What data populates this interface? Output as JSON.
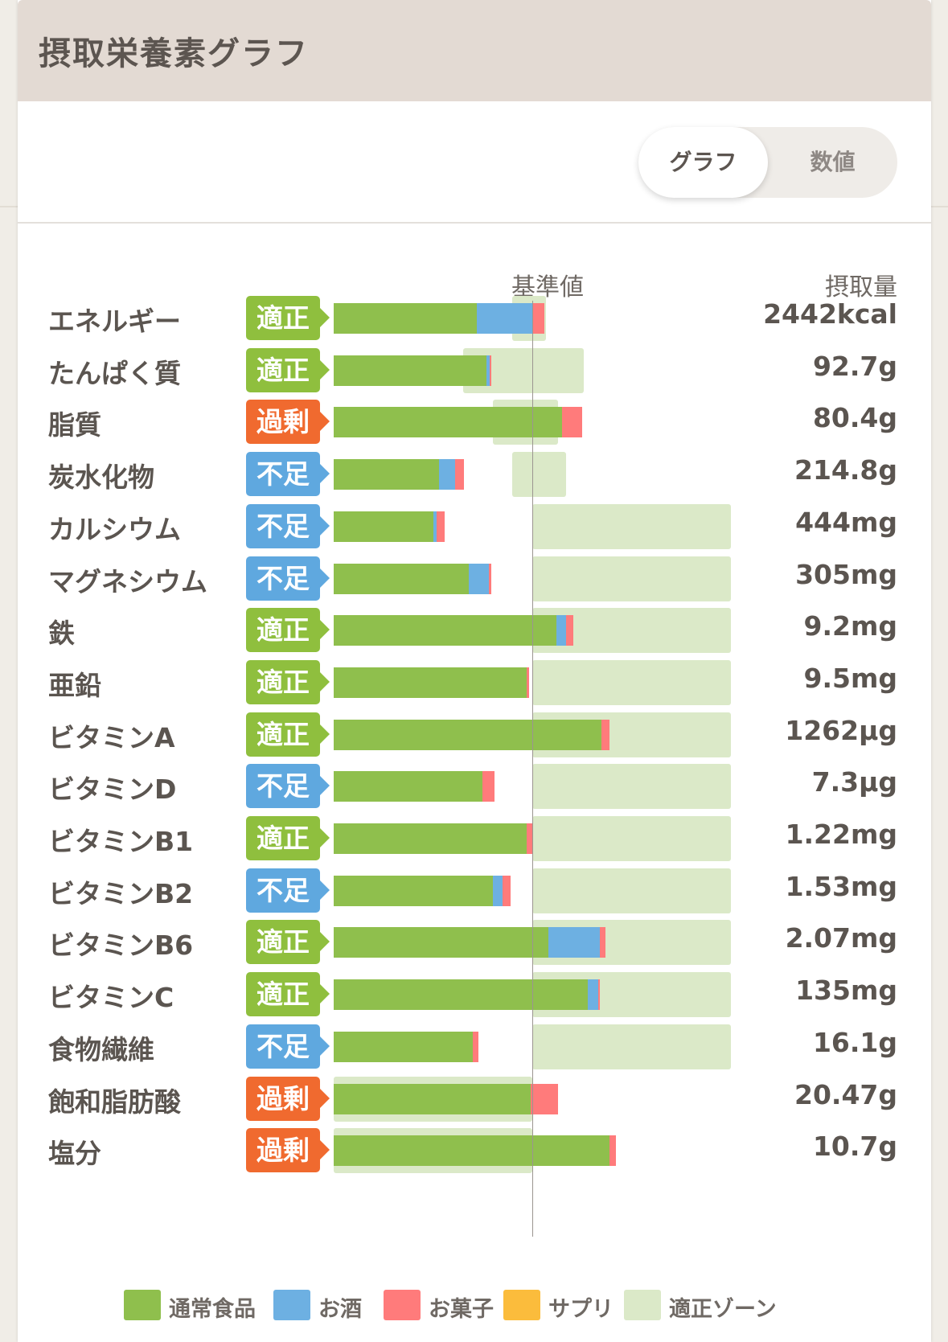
{
  "header": {
    "title": "摂取栄養素グラフ"
  },
  "toggle": {
    "graph_label": "グラフ",
    "value_label": "数値"
  },
  "chart_headers": {
    "reference": "基準値",
    "intake": "摂取量"
  },
  "colors": {
    "food": "#8fbf4d",
    "alcohol": "#6db0e2",
    "snack": "#ff7b7b",
    "supplement": "#fbbc3c",
    "zone": "#dbe9c8",
    "status_ok": "#8fbf3e",
    "status_low": "#5fa8df",
    "status_high": "#f06a2f"
  },
  "chart_data": {
    "type": "bar",
    "orientation": "horizontal",
    "stacked": true,
    "reference_value_percent": 100,
    "series_names": [
      "通常食品",
      "お酒",
      "お菓子",
      "サプリ"
    ],
    "nutrients": [
      {
        "name": "エネルギー",
        "status": "適正",
        "status_type": "ok",
        "value": "2442kcal",
        "zone": [
          90,
          107
        ],
        "food": 72,
        "alcohol": 28,
        "snack": 6,
        "supplement": 0
      },
      {
        "name": "たんぱく質",
        "status": "適正",
        "status_type": "ok",
        "value": "92.7g",
        "zone": [
          65,
          126
        ],
        "food": 77,
        "alcohol": 1.5,
        "snack": 1,
        "supplement": 0
      },
      {
        "name": "脂質",
        "status": "過剰",
        "status_type": "high",
        "value": "80.4g",
        "zone": [
          80,
          113
        ],
        "food": 115,
        "alcohol": 0,
        "snack": 10,
        "supplement": 0
      },
      {
        "name": "炭水化物",
        "status": "不足",
        "status_type": "low",
        "value": "214.8g",
        "zone": [
          90,
          117
        ],
        "food": 53,
        "alcohol": 8,
        "snack": 4.5,
        "supplement": 0
      },
      {
        "name": "カルシウム",
        "status": "不足",
        "status_type": "low",
        "value": "444mg",
        "zone": [
          100,
          200
        ],
        "food": 50,
        "alcohol": 2,
        "snack": 4,
        "supplement": 0
      },
      {
        "name": "マグネシウム",
        "status": "不足",
        "status_type": "low",
        "value": "305mg",
        "zone": [
          100,
          200
        ],
        "food": 68,
        "alcohol": 10,
        "snack": 1.5,
        "supplement": 0
      },
      {
        "name": "鉄",
        "status": "適正",
        "status_type": "ok",
        "value": "9.2mg",
        "zone": [
          100,
          200
        ],
        "food": 112,
        "alcohol": 5,
        "snack": 3.5,
        "supplement": 0
      },
      {
        "name": "亜鉛",
        "status": "適正",
        "status_type": "ok",
        "value": "9.5mg",
        "zone": [
          100,
          200
        ],
        "food": 97,
        "alcohol": 0,
        "snack": 1.5,
        "supplement": 0
      },
      {
        "name": "ビタミンA",
        "status": "適正",
        "status_type": "ok",
        "value": "1262μg",
        "zone": [
          100,
          200
        ],
        "food": 135,
        "alcohol": 0,
        "snack": 4,
        "supplement": 0
      },
      {
        "name": "ビタミンD",
        "status": "不足",
        "status_type": "low",
        "value": "7.3μg",
        "zone": [
          100,
          200
        ],
        "food": 75,
        "alcohol": 0,
        "snack": 6,
        "supplement": 0
      },
      {
        "name": "ビタミンB1",
        "status": "適正",
        "status_type": "ok",
        "value": "1.22mg",
        "zone": [
          100,
          200
        ],
        "food": 97,
        "alcohol": 0,
        "snack": 3,
        "supplement": 0
      },
      {
        "name": "ビタミンB2",
        "status": "不足",
        "status_type": "low",
        "value": "1.53mg",
        "zone": [
          100,
          200
        ],
        "food": 80,
        "alcohol": 5,
        "snack": 4,
        "supplement": 0
      },
      {
        "name": "ビタミンB6",
        "status": "適正",
        "status_type": "ok",
        "value": "2.07mg",
        "zone": [
          100,
          200
        ],
        "food": 108,
        "alcohol": 26,
        "snack": 3,
        "supplement": 0
      },
      {
        "name": "ビタミンC",
        "status": "適正",
        "status_type": "ok",
        "value": "135mg",
        "zone": [
          100,
          200
        ],
        "food": 128,
        "alcohol": 5,
        "snack": 1,
        "supplement": 0
      },
      {
        "name": "食物繊維",
        "status": "不足",
        "status_type": "low",
        "value": "16.1g",
        "zone": [
          100,
          200
        ],
        "food": 70,
        "alcohol": 0,
        "snack": 3,
        "supplement": 0
      },
      {
        "name": "飽和脂肪酸",
        "status": "過剰",
        "status_type": "high",
        "value": "20.47g",
        "zone": [
          0,
          100
        ],
        "food": 99,
        "alcohol": 0,
        "snack": 14,
        "supplement": 0
      },
      {
        "name": "塩分",
        "status": "過剰",
        "status_type": "high",
        "value": "10.7g",
        "zone": [
          0,
          100
        ],
        "food": 139,
        "alcohol": 0,
        "snack": 3,
        "supplement": 0
      }
    ]
  },
  "legend": [
    {
      "label": "通常食品",
      "color": "#8fbf4d"
    },
    {
      "label": "お酒",
      "color": "#6db0e2"
    },
    {
      "label": "お菓子",
      "color": "#ff7b7b"
    },
    {
      "label": "サプリ",
      "color": "#fbbc3c"
    },
    {
      "label": "適正ゾーン",
      "color": "#dbe9c8"
    }
  ]
}
